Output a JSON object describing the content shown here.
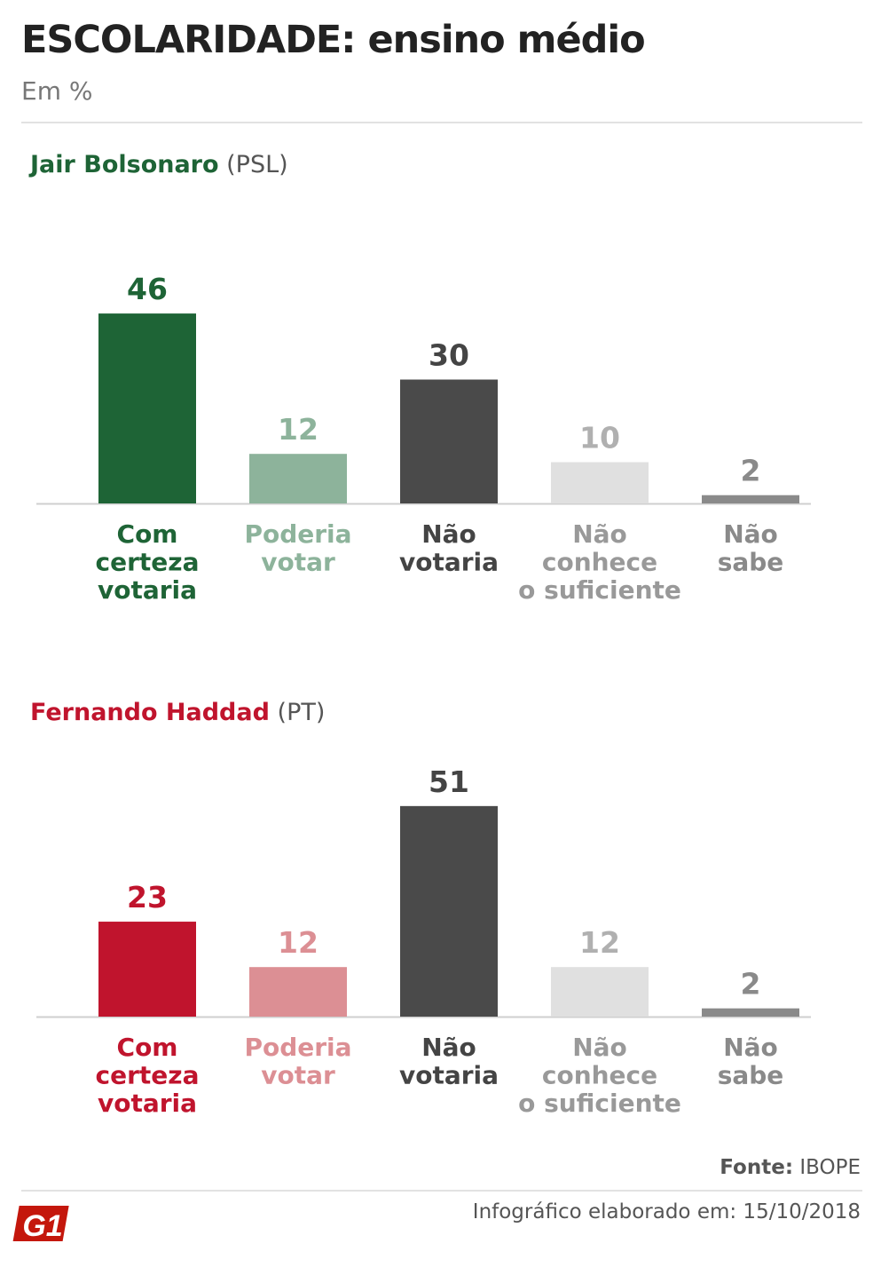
{
  "header": {
    "title": "ESCOLARIDADE: ensino médio",
    "subtitle": "Em %"
  },
  "chart_data": [
    {
      "type": "bar",
      "title": "Jair Bolsonaro",
      "party": "(PSL)",
      "title_color": "#1e6436",
      "categories": [
        [
          "Com",
          "certeza",
          "votaria"
        ],
        [
          "Poderia",
          "votar"
        ],
        [
          "Não",
          "votaria"
        ],
        [
          "Não",
          "conhece",
          "o suficiente"
        ],
        [
          "Não",
          "sabe"
        ]
      ],
      "values": [
        46,
        12,
        30,
        10,
        2
      ],
      "colors": [
        "#1e6436",
        "#8db39b",
        "#4a4a4a",
        "#e0e0e0",
        "#8a8a8a"
      ],
      "value_colors": [
        "#1e6436",
        "#8db39b",
        "#444444",
        "#b0b0b0",
        "#8a8a8a"
      ],
      "label_colors": [
        "#1e6436",
        "#8db39b",
        "#444444",
        "#999999",
        "#8a8a8a"
      ],
      "ylim": [
        0,
        51
      ]
    },
    {
      "type": "bar",
      "title": "Fernando Haddad",
      "party": "(PT)",
      "title_color": "#c0142d",
      "categories": [
        [
          "Com",
          "certeza",
          "votaria"
        ],
        [
          "Poderia",
          "votar"
        ],
        [
          "Não",
          "votaria"
        ],
        [
          "Não",
          "conhece",
          "o suficiente"
        ],
        [
          "Não",
          "sabe"
        ]
      ],
      "values": [
        23,
        12,
        51,
        12,
        2
      ],
      "colors": [
        "#c0142d",
        "#dc8f94",
        "#4a4a4a",
        "#e0e0e0",
        "#8a8a8a"
      ],
      "value_colors": [
        "#c0142d",
        "#dc8f94",
        "#444444",
        "#b0b0b0",
        "#8a8a8a"
      ],
      "label_colors": [
        "#c0142d",
        "#dc8f94",
        "#444444",
        "#999999",
        "#8a8a8a"
      ],
      "ylim": [
        0,
        51
      ]
    }
  ],
  "footer": {
    "fonte_label": "Fonte:",
    "fonte_value": "IBOPE",
    "infografico": "Infográfico elaborado em: 15/10/2018",
    "logo_text": "G1"
  }
}
